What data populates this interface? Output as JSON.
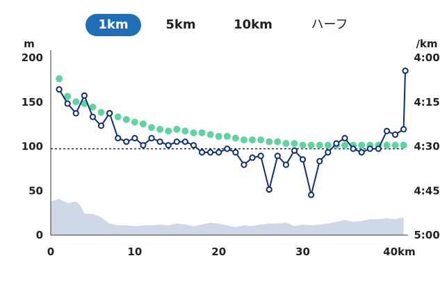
{
  "tabs": [
    {
      "label": "1km",
      "active": true
    },
    {
      "label": "5km",
      "active": false
    },
    {
      "label": "10km",
      "active": false
    },
    {
      "label": "ハーフ",
      "active": false
    }
  ],
  "chart_data": {
    "type": "line",
    "x_tick_labels": [
      "0",
      "10",
      "20",
      "30",
      "40km"
    ],
    "xlim": [
      0,
      42.2
    ],
    "left_axis": {
      "label": "m",
      "ticks": [
        "200",
        "150",
        "100",
        "50",
        "0"
      ],
      "ylim": [
        0,
        200
      ]
    },
    "right_axis": {
      "label": "/km",
      "ticks": [
        "4:00",
        "4:15",
        "4:30",
        "4:45",
        "5:00"
      ],
      "ylim_seconds": [
        240,
        300
      ]
    },
    "colors": {
      "pace": "#0d2d7a",
      "target": "#5ed4a0",
      "elevation": "#cfd8e6",
      "average_line": "#0d2d7a",
      "active_tab": "#1e6eb8"
    },
    "average_pace_seconds": 270.8,
    "elevation_m": [
      [
        0,
        38
      ],
      [
        1,
        41
      ],
      [
        2,
        36
      ],
      [
        3,
        38
      ],
      [
        3.5,
        34
      ],
      [
        4,
        24
      ],
      [
        5,
        24
      ],
      [
        6,
        20
      ],
      [
        7,
        13
      ],
      [
        8,
        11
      ],
      [
        9,
        11
      ],
      [
        10,
        10
      ],
      [
        11,
        11
      ],
      [
        12,
        11
      ],
      [
        13,
        12
      ],
      [
        14,
        11
      ],
      [
        15,
        13
      ],
      [
        16,
        12
      ],
      [
        17,
        10
      ],
      [
        18,
        12
      ],
      [
        19,
        14
      ],
      [
        20,
        13
      ],
      [
        21,
        11
      ],
      [
        22,
        9
      ],
      [
        23,
        11
      ],
      [
        24,
        10
      ],
      [
        25,
        12
      ],
      [
        26,
        13
      ],
      [
        27,
        13
      ],
      [
        28,
        14
      ],
      [
        29,
        10
      ],
      [
        30,
        12
      ],
      [
        31,
        11
      ],
      [
        32,
        12
      ],
      [
        33,
        13
      ],
      [
        34,
        15
      ],
      [
        35,
        17
      ],
      [
        36,
        15
      ],
      [
        37,
        16
      ],
      [
        38,
        18
      ],
      [
        39,
        18
      ],
      [
        40,
        19
      ],
      [
        41,
        18
      ],
      [
        42,
        20
      ]
    ],
    "pace_seconds": [
      [
        1,
        250.7
      ],
      [
        2,
        255.5
      ],
      [
        3,
        258.8
      ],
      [
        4,
        252.8
      ],
      [
        5,
        260
      ],
      [
        6,
        263
      ],
      [
        7,
        258.8
      ],
      [
        8,
        267.2
      ],
      [
        9,
        268.4
      ],
      [
        10,
        267.2
      ],
      [
        11,
        269.6
      ],
      [
        12,
        267.2
      ],
      [
        13,
        268.4
      ],
      [
        14,
        269.6
      ],
      [
        15,
        268.4
      ],
      [
        16,
        268.4
      ],
      [
        17,
        269.6
      ],
      [
        18,
        272
      ],
      [
        19,
        272
      ],
      [
        20,
        272
      ],
      [
        21,
        270.8
      ],
      [
        22,
        272
      ],
      [
        23,
        276.2
      ],
      [
        24,
        273.8
      ],
      [
        25,
        273.2
      ],
      [
        26,
        284.6
      ],
      [
        27,
        273.2
      ],
      [
        28,
        276.2
      ],
      [
        29,
        271.4
      ],
      [
        30,
        274.4
      ],
      [
        31,
        286.4
      ],
      [
        32,
        275
      ],
      [
        33,
        272
      ],
      [
        34,
        269
      ],
      [
        35,
        267.2
      ],
      [
        36,
        270.8
      ],
      [
        37,
        272
      ],
      [
        38,
        270.8
      ],
      [
        39,
        270.8
      ],
      [
        40,
        264.8
      ],
      [
        41,
        266
      ],
      [
        42,
        264.2
      ],
      [
        42.2,
        244.4
      ]
    ],
    "target_pace_seconds": [
      [
        1,
        247.1
      ],
      [
        2,
        253.1
      ],
      [
        3,
        254.9
      ],
      [
        4,
        255.5
      ],
      [
        5,
        256.7
      ],
      [
        6,
        258.5
      ],
      [
        7,
        258.8
      ],
      [
        8,
        260
      ],
      [
        9,
        260.9
      ],
      [
        10,
        261.8
      ],
      [
        11,
        262.4
      ],
      [
        12,
        263.6
      ],
      [
        13,
        264.2
      ],
      [
        14,
        264.8
      ],
      [
        15,
        264.2
      ],
      [
        16,
        264.8
      ],
      [
        17,
        265.4
      ],
      [
        18,
        265.4
      ],
      [
        19,
        266
      ],
      [
        20,
        266.6
      ],
      [
        21,
        266.6
      ],
      [
        22,
        267.2
      ],
      [
        23,
        267.8
      ],
      [
        24,
        267.8
      ],
      [
        25,
        267.8
      ],
      [
        26,
        268.4
      ],
      [
        27,
        268.4
      ],
      [
        28,
        269
      ],
      [
        29,
        269
      ],
      [
        30,
        269.6
      ],
      [
        31,
        269.6
      ],
      [
        32,
        269.6
      ],
      [
        33,
        269.6
      ],
      [
        34,
        269.6
      ],
      [
        35,
        269.6
      ],
      [
        36,
        269.6
      ],
      [
        37,
        269.6
      ],
      [
        38,
        269.6
      ],
      [
        39,
        269.6
      ],
      [
        40,
        269.6
      ],
      [
        41,
        269.6
      ],
      [
        42,
        269.6
      ]
    ]
  }
}
